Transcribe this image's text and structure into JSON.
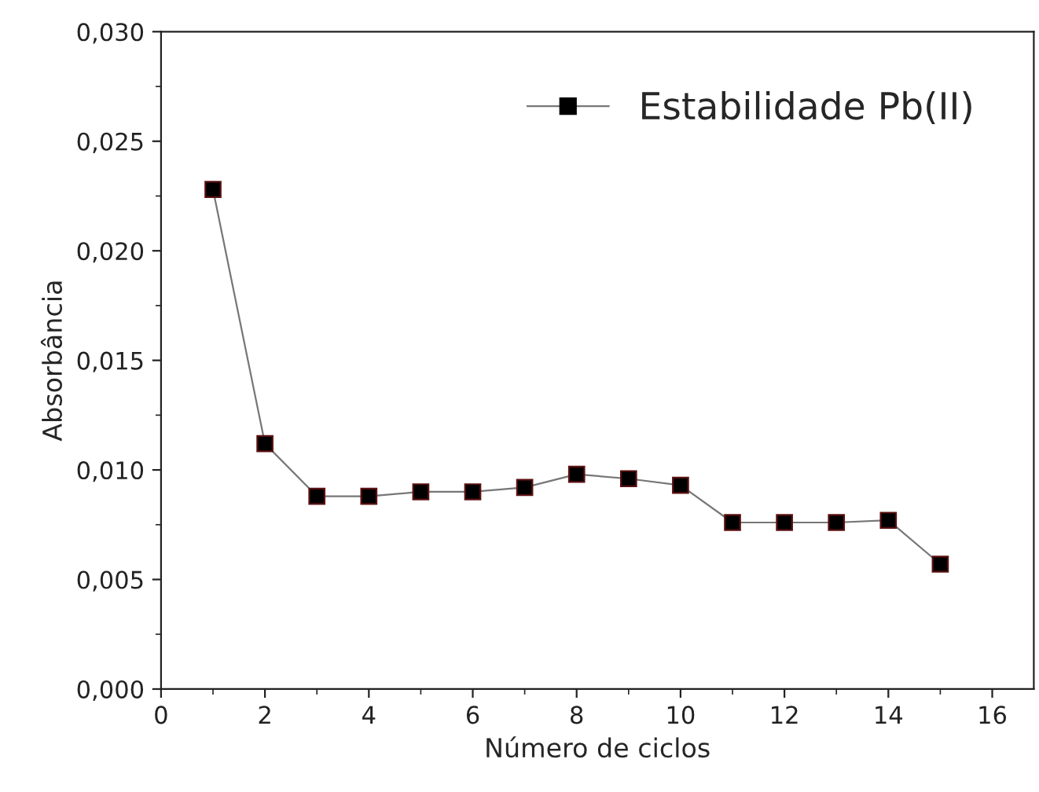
{
  "chart_data": {
    "type": "line",
    "xlabel": "Número de ciclos",
    "ylabel": "Absorbância",
    "x": [
      1,
      2,
      3,
      4,
      5,
      6,
      7,
      8,
      9,
      10,
      11,
      12,
      13,
      14,
      15
    ],
    "series": [
      {
        "name": "Estabilidade Pb(II)",
        "color": "#000000",
        "values": [
          0.0228,
          0.0112,
          0.0088,
          0.0088,
          0.009,
          0.009,
          0.0092,
          0.0098,
          0.0096,
          0.0093,
          0.0076,
          0.0076,
          0.0076,
          0.0077,
          0.0057
        ]
      }
    ],
    "xlim": [
      0,
      16.8
    ],
    "xticks": [
      0,
      2,
      4,
      6,
      8,
      10,
      12,
      14,
      16
    ],
    "ylim": [
      0,
      0.03
    ],
    "yticks": [
      {
        "value": 0,
        "label": "0,000"
      },
      {
        "value": 0.005,
        "label": "0,005"
      },
      {
        "value": 0.01,
        "label": "0,010"
      },
      {
        "value": 0.015,
        "label": "0,015"
      },
      {
        "value": 0.02,
        "label": "0,020"
      },
      {
        "value": 0.025,
        "label": "0,025"
      },
      {
        "value": 0.03,
        "label": "0,030"
      }
    ],
    "marker": "square",
    "line_style": "solid",
    "legend": "top right",
    "grid": false
  }
}
